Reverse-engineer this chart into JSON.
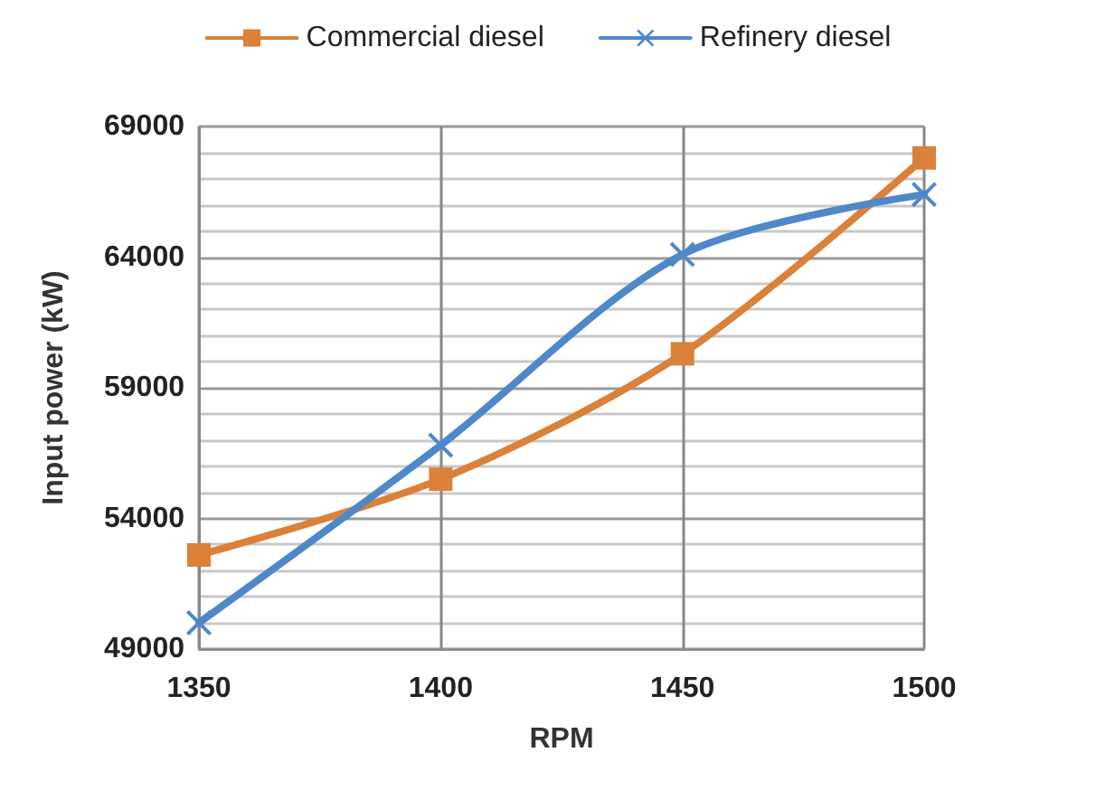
{
  "chart_data": {
    "type": "line",
    "xlabel": "RPM",
    "ylabel": "Input power (kW)",
    "x": [
      1350,
      1400,
      1450,
      1500
    ],
    "series": [
      {
        "name": "Commercial diesel",
        "color": "#db8139",
        "marker": "square",
        "values": [
          52600,
          55500,
          60300,
          67800
        ]
      },
      {
        "name": "Refinery diesel",
        "color": "#4f88c9",
        "marker": "cross",
        "values": [
          50000,
          56800,
          64100,
          66400
        ]
      }
    ],
    "xlim": [
      1350,
      1500
    ],
    "xticks": [
      1350,
      1400,
      1450,
      1500
    ],
    "ylim": [
      49000,
      69000
    ],
    "yticks": [
      49000,
      54000,
      59000,
      64000,
      69000
    ],
    "grid": true,
    "legend": "top",
    "line_style": "solid"
  }
}
